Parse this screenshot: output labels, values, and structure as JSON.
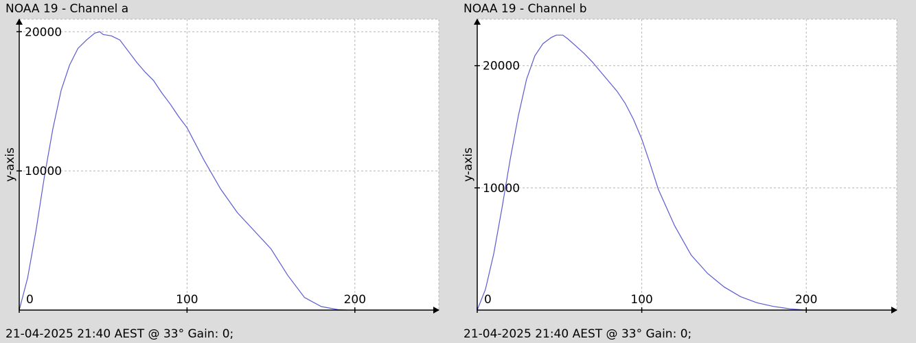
{
  "colors": {
    "series": "#5a5ad2",
    "plot_bg": "#ffffff",
    "window_bg": "#dcdcdc"
  },
  "chart_data": [
    {
      "type": "line",
      "title": "NOAA 19 - Channel a",
      "footer": "21-04-2025 21:40 AEST @ 33° Gain: 0;",
      "xlabel": "",
      "ylabel": "y-axis",
      "xlim": [
        0,
        250
      ],
      "ylim": [
        0,
        20900
      ],
      "xticks": [
        0,
        100,
        200
      ],
      "yticks": [
        10000,
        20000
      ],
      "grid": true,
      "series": [
        {
          "x": [
            0,
            5,
            10,
            15,
            20,
            25,
            30,
            35,
            40,
            45,
            48,
            50,
            55,
            60,
            65,
            70,
            75,
            80,
            85,
            90,
            95,
            100,
            110,
            120,
            130,
            140,
            150,
            160,
            170,
            180,
            190,
            195
          ],
          "y": [
            0,
            2300,
            5700,
            9600,
            13000,
            15800,
            17600,
            18800,
            19400,
            19900,
            20000,
            19800,
            19700,
            19400,
            18600,
            17800,
            17100,
            16500,
            15600,
            14800,
            13900,
            13100,
            10800,
            8700,
            7000,
            5700,
            4400,
            2500,
            900,
            250,
            30,
            0
          ]
        }
      ]
    },
    {
      "type": "line",
      "title": "NOAA 19 - Channel b",
      "footer": "21-04-2025 21:40 AEST @ 33° Gain: 0;",
      "xlabel": "",
      "ylabel": "y-axis",
      "xlim": [
        0,
        255
      ],
      "ylim": [
        0,
        23800
      ],
      "xticks": [
        0,
        100,
        200
      ],
      "yticks": [
        10000,
        20000
      ],
      "grid": true,
      "series": [
        {
          "x": [
            0,
            5,
            10,
            15,
            20,
            25,
            30,
            35,
            40,
            45,
            48,
            52,
            55,
            60,
            65,
            70,
            75,
            80,
            85,
            90,
            95,
            100,
            105,
            110,
            120,
            130,
            140,
            150,
            160,
            170,
            180,
            190,
            200
          ],
          "y": [
            0,
            1700,
            4600,
            8300,
            12300,
            15900,
            18900,
            20800,
            21800,
            22300,
            22500,
            22500,
            22200,
            21600,
            21000,
            20300,
            19500,
            18700,
            17900,
            16900,
            15600,
            14000,
            12000,
            9900,
            6900,
            4500,
            3000,
            1900,
            1100,
            600,
            300,
            100,
            0
          ]
        }
      ]
    }
  ]
}
